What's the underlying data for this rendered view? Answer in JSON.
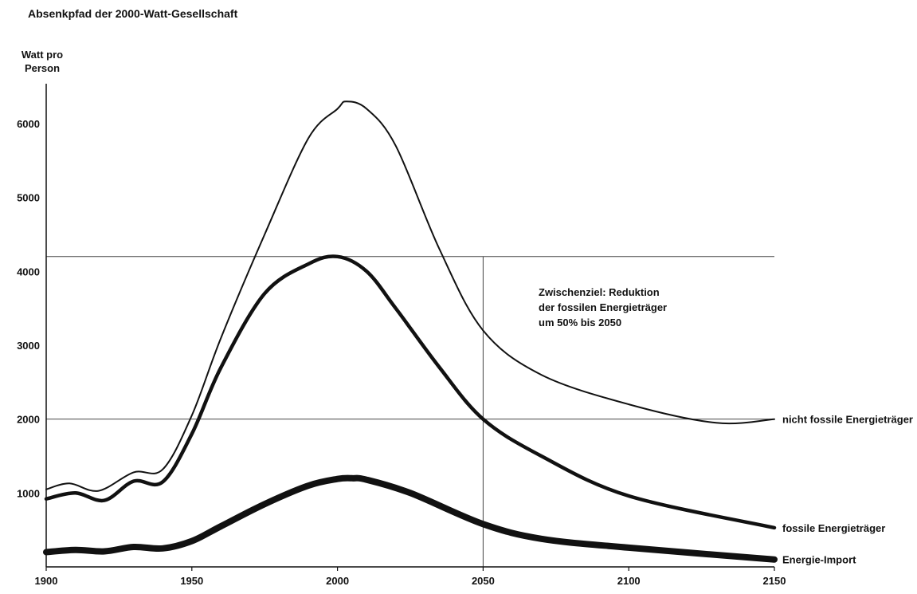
{
  "chart_data": {
    "type": "line",
    "title": "Absenkpfad der 2000-Watt-Gesellschaft",
    "ylabel_lines": [
      "Watt pro",
      "Person"
    ],
    "xlim": [
      1900,
      2150
    ],
    "ylim": [
      0,
      6300
    ],
    "x_ticks": [
      1900,
      1950,
      2000,
      2050,
      2100,
      2150
    ],
    "y_ticks": [
      1000,
      2000,
      3000,
      4000,
      5000,
      6000
    ],
    "reference_lines": {
      "horizontal": [
        4200,
        2000
      ],
      "vertical": [
        2050
      ]
    },
    "annotation_lines": [
      "Zwischenziel: Reduktion",
      "der fossilen Energieträger",
      "um 50% bis 2050"
    ],
    "series": [
      {
        "name": "nicht fossile Energieträger",
        "stroke": "#111111",
        "x": [
          1900,
          1908,
          1918,
          1930,
          1940,
          1950,
          1960,
          1975,
          1990,
          2000,
          2003,
          2010,
          2020,
          2035,
          2050,
          2070,
          2100,
          2130,
          2150
        ],
        "y": [
          1050,
          1130,
          1030,
          1280,
          1320,
          2050,
          3100,
          4500,
          5800,
          6200,
          6300,
          6200,
          5700,
          4300,
          3200,
          2600,
          2200,
          1950,
          2000
        ]
      },
      {
        "name": "fossile Energieträger",
        "stroke": "#111111",
        "x": [
          1900,
          1910,
          1920,
          1930,
          1940,
          1950,
          1960,
          1975,
          1990,
          2000,
          2010,
          2020,
          2035,
          2050,
          2070,
          2100,
          2150
        ],
        "y": [
          920,
          1000,
          900,
          1160,
          1150,
          1800,
          2700,
          3700,
          4100,
          4200,
          4000,
          3500,
          2700,
          2000,
          1500,
          960,
          530
        ]
      },
      {
        "name": "Energie-Import",
        "stroke": "#111111",
        "x": [
          1900,
          1910,
          1920,
          1930,
          1940,
          1950,
          1960,
          1975,
          1990,
          2000,
          2005,
          2010,
          2025,
          2050,
          2070,
          2100,
          2150
        ],
        "y": [
          200,
          230,
          210,
          270,
          250,
          350,
          550,
          850,
          1100,
          1190,
          1200,
          1180,
          1000,
          580,
          380,
          260,
          100
        ]
      }
    ]
  }
}
